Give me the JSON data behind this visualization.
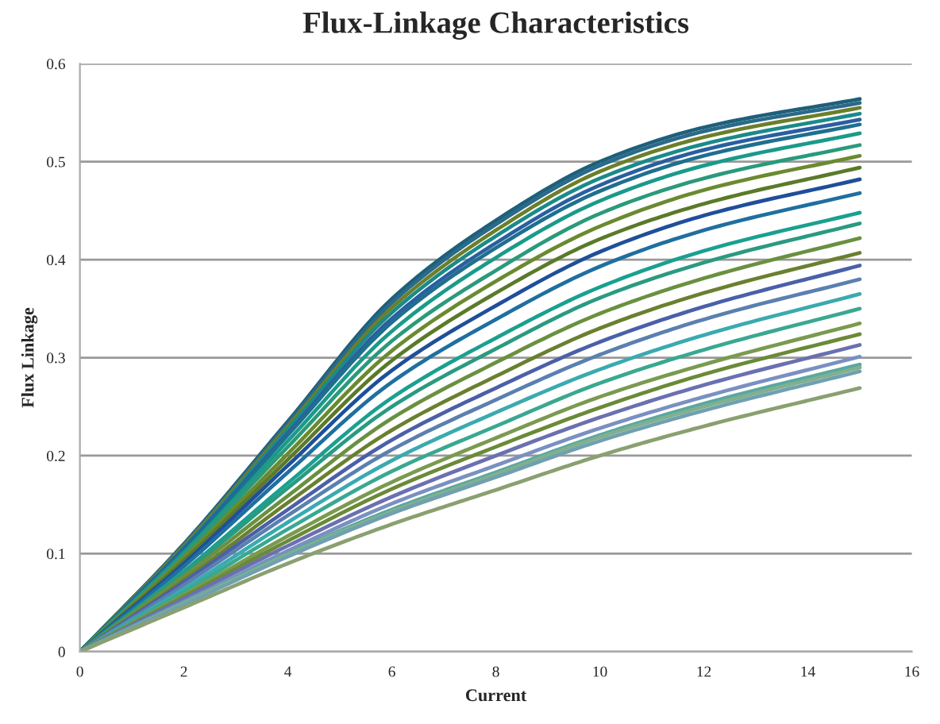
{
  "chart_data": {
    "type": "line",
    "title": "Flux-Linkage Characteristics",
    "xlabel": "Current",
    "ylabel": "Flux Linkage",
    "x": [
      0,
      2,
      4,
      6,
      8,
      10,
      12,
      15
    ],
    "xlim": [
      0,
      16
    ],
    "xticks": [
      0,
      2,
      4,
      6,
      8,
      10,
      12,
      14,
      16
    ],
    "ylim": [
      0,
      0.6
    ],
    "yticks": [
      {
        "value": 0,
        "label": "0"
      },
      {
        "value": 0.1,
        "label": "0.1"
      },
      {
        "value": 0.2,
        "label": "0.2"
      },
      {
        "value": 0.3,
        "label": "0.3"
      },
      {
        "value": 0.4,
        "label": "0.4"
      },
      {
        "value": 0.5,
        "label": "0.5"
      },
      {
        "value": 0.6,
        "label": "0.6"
      }
    ],
    "grid": "y",
    "marker": "none",
    "line_style": "solid",
    "series": [
      {
        "color": "#1f5f7a",
        "values": [
          0,
          0.11,
          0.235,
          0.36,
          0.44,
          0.5,
          0.535,
          0.564
        ]
      },
      {
        "color": "#2a6a8a",
        "values": [
          0,
          0.109,
          0.233,
          0.356,
          0.436,
          0.496,
          0.531,
          0.56
        ]
      },
      {
        "color": "#6b7f2a",
        "values": [
          0,
          0.108,
          0.23,
          0.351,
          0.43,
          0.49,
          0.525,
          0.555
        ]
      },
      {
        "color": "#1a8a8a",
        "values": [
          0,
          0.106,
          0.227,
          0.346,
          0.424,
          0.483,
          0.518,
          0.549
        ]
      },
      {
        "color": "#2a5fa0",
        "values": [
          0,
          0.105,
          0.223,
          0.34,
          0.417,
          0.476,
          0.512,
          0.543
        ]
      },
      {
        "color": "#1f6f8f",
        "values": [
          0,
          0.103,
          0.221,
          0.336,
          0.412,
          0.47,
          0.506,
          0.538
        ]
      },
      {
        "color": "#1a9a8a",
        "values": [
          0,
          0.101,
          0.215,
          0.327,
          0.402,
          0.46,
          0.496,
          0.529
        ]
      },
      {
        "color": "#2a9a7a",
        "values": [
          0,
          0.099,
          0.209,
          0.317,
          0.389,
          0.447,
          0.483,
          0.517
        ]
      },
      {
        "color": "#6b8a30",
        "values": [
          0,
          0.096,
          0.202,
          0.307,
          0.378,
          0.434,
          0.471,
          0.506
        ]
      },
      {
        "color": "#5a7a2a",
        "values": [
          0,
          0.093,
          0.196,
          0.297,
          0.366,
          0.421,
          0.457,
          0.494
        ]
      },
      {
        "color": "#1f4f9a",
        "values": [
          0,
          0.09,
          0.19,
          0.287,
          0.353,
          0.408,
          0.445,
          0.482
        ]
      },
      {
        "color": "#1f6fa0",
        "values": [
          0,
          0.087,
          0.183,
          0.275,
          0.339,
          0.393,
          0.43,
          0.468
        ]
      },
      {
        "color": "#1aa090",
        "values": [
          0,
          0.082,
          0.172,
          0.259,
          0.32,
          0.372,
          0.409,
          0.448
        ]
      },
      {
        "color": "#2a9a80",
        "values": [
          0,
          0.08,
          0.167,
          0.25,
          0.309,
          0.361,
          0.397,
          0.437
        ]
      },
      {
        "color": "#6a9040",
        "values": [
          0,
          0.077,
          0.159,
          0.238,
          0.295,
          0.345,
          0.381,
          0.422
        ]
      },
      {
        "color": "#6a8030",
        "values": [
          0,
          0.073,
          0.152,
          0.226,
          0.281,
          0.33,
          0.366,
          0.407
        ]
      },
      {
        "color": "#4a60a8",
        "values": [
          0,
          0.071,
          0.145,
          0.216,
          0.269,
          0.316,
          0.352,
          0.394
        ]
      },
      {
        "color": "#5a80b0",
        "values": [
          0,
          0.068,
          0.139,
          0.206,
          0.257,
          0.303,
          0.339,
          0.38
        ]
      },
      {
        "color": "#3aaab0",
        "values": [
          0,
          0.064,
          0.132,
          0.195,
          0.244,
          0.288,
          0.323,
          0.365
        ]
      },
      {
        "color": "#3aa890",
        "values": [
          0,
          0.061,
          0.125,
          0.184,
          0.23,
          0.274,
          0.308,
          0.35
        ]
      },
      {
        "color": "#7a9a50",
        "values": [
          0,
          0.058,
          0.118,
          0.173,
          0.218,
          0.26,
          0.293,
          0.335
        ]
      },
      {
        "color": "#6a8a38",
        "values": [
          0,
          0.056,
          0.113,
          0.166,
          0.209,
          0.249,
          0.283,
          0.324
        ]
      },
      {
        "color": "#6a70b0",
        "values": [
          0,
          0.054,
          0.108,
          0.158,
          0.2,
          0.239,
          0.272,
          0.313
        ]
      },
      {
        "color": "#7a90c0",
        "values": [
          0,
          0.051,
          0.103,
          0.151,
          0.19,
          0.228,
          0.26,
          0.301
        ]
      },
      {
        "color": "#5aa8a0",
        "values": [
          0,
          0.05,
          0.1,
          0.145,
          0.183,
          0.221,
          0.253,
          0.293
        ]
      },
      {
        "color": "#80b090",
        "values": [
          0,
          0.049,
          0.099,
          0.143,
          0.181,
          0.219,
          0.25,
          0.29
        ]
      },
      {
        "color": "#70a0b0",
        "values": [
          0,
          0.048,
          0.097,
          0.141,
          0.178,
          0.215,
          0.246,
          0.286
        ]
      },
      {
        "color": "#8aa070",
        "values": [
          0,
          0.045,
          0.09,
          0.13,
          0.165,
          0.2,
          0.23,
          0.269
        ]
      }
    ]
  }
}
